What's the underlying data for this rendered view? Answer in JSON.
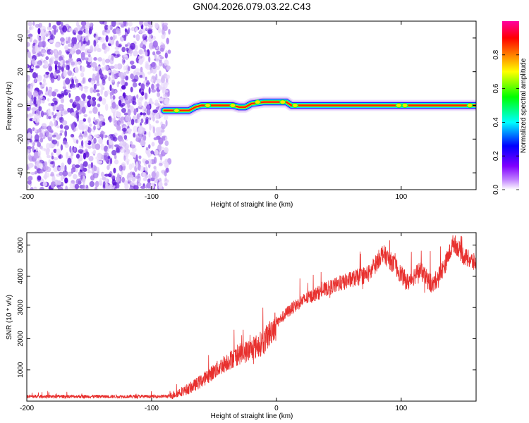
{
  "figure": {
    "title": "GN04.2026.079.03.22.C43"
  },
  "chart_data": [
    {
      "type": "heatmap",
      "title": "GN04.2026.079.03.22.C43",
      "xlabel": "Height of straight line (km)",
      "ylabel": "Frequency (Hz)",
      "xlim": [
        -200,
        160
      ],
      "ylim": [
        -50,
        50
      ],
      "xticks": [
        -200,
        -100,
        0,
        100
      ],
      "yticks": [
        -40,
        -20,
        0,
        20,
        40
      ],
      "colorbar": {
        "label": "Normalized spectral amplitude",
        "range": [
          0,
          1
        ],
        "ticks": [
          0.0,
          0.2,
          0.4,
          0.6,
          0.8
        ],
        "colors": [
          "#ffffff",
          "#8000ff",
          "#0000ff",
          "#00ffff",
          "#00ff00",
          "#ffff00",
          "#ff8000",
          "#ff0000",
          "#ff00ff"
        ]
      },
      "noise_region_x": [
        -200,
        -88
      ],
      "ridge": [
        {
          "x": -90,
          "f": -3
        },
        {
          "x": -80,
          "f": -3
        },
        {
          "x": -70,
          "f": -3
        },
        {
          "x": -65,
          "f": -1
        },
        {
          "x": -60,
          "f": 0
        },
        {
          "x": -50,
          "f": 0
        },
        {
          "x": -45,
          "f": 0
        },
        {
          "x": -40,
          "f": 0
        },
        {
          "x": -35,
          "f": 0
        },
        {
          "x": -30,
          "f": -1
        },
        {
          "x": -25,
          "f": -1
        },
        {
          "x": -20,
          "f": 1
        },
        {
          "x": -10,
          "f": 2
        },
        {
          "x": 0,
          "f": 2
        },
        {
          "x": 8,
          "f": 2
        },
        {
          "x": 12,
          "f": 0
        },
        {
          "x": 50,
          "f": 0
        },
        {
          "x": 100,
          "f": 0
        },
        {
          "x": 160,
          "f": 0
        }
      ]
    },
    {
      "type": "line",
      "xlabel": "Height of straight line (km)",
      "ylabel": "SNR (10 * v/v)",
      "xlim": [
        -200,
        160
      ],
      "ylim": [
        0,
        5400
      ],
      "xticks": [
        -200,
        -100,
        0,
        100
      ],
      "yticks": [
        1000,
        2000,
        3000,
        4000,
        5000
      ],
      "series": [
        {
          "name": "SNR",
          "color": "#e8302e",
          "trend": [
            [
              -200,
              150
            ],
            [
              -150,
              150
            ],
            [
              -100,
              150
            ],
            [
              -85,
              160
            ],
            [
              -80,
              250
            ],
            [
              -70,
              400
            ],
            [
              -60,
              650
            ],
            [
              -50,
              950
            ],
            [
              -40,
              1250
            ],
            [
              -30,
              1500
            ],
            [
              -20,
              1650
            ],
            [
              -10,
              1900
            ],
            [
              0,
              2500
            ],
            [
              10,
              2900
            ],
            [
              20,
              3200
            ],
            [
              40,
              3600
            ],
            [
              60,
              3900
            ],
            [
              75,
              4100
            ],
            [
              85,
              4750
            ],
            [
              95,
              4350
            ],
            [
              100,
              4050
            ],
            [
              105,
              3800
            ],
            [
              115,
              4200
            ],
            [
              125,
              3700
            ],
            [
              135,
              4350
            ],
            [
              142,
              5100
            ],
            [
              150,
              4650
            ],
            [
              160,
              4400
            ]
          ]
        }
      ]
    }
  ]
}
